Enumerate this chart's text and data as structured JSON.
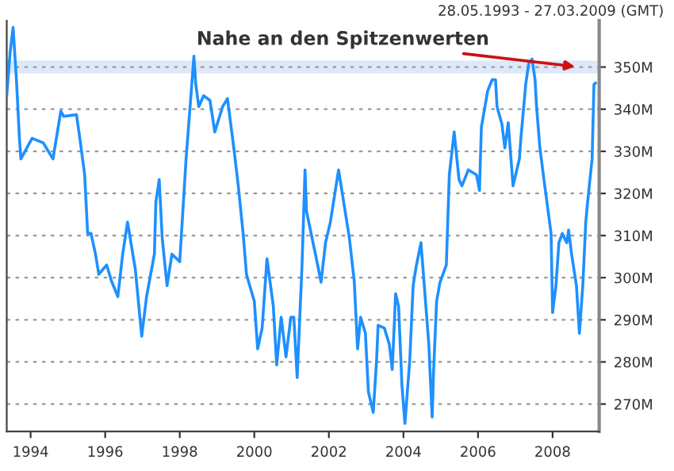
{
  "chart_data": {
    "type": "line",
    "subtitle": "28.05.1993 - 27.03.2009 (GMT)",
    "x": [
      1993.36,
      1993.45,
      1993.53,
      1993.62,
      1993.7,
      1993.74,
      1994.04,
      1994.34,
      1994.6,
      1994.81,
      1994.89,
      1995.23,
      1995.32,
      1995.45,
      1995.53,
      1995.62,
      1995.74,
      1995.83,
      1996.04,
      1996.17,
      1996.34,
      1996.47,
      1996.6,
      1996.81,
      1996.98,
      1997.11,
      1997.32,
      1997.36,
      1997.45,
      1997.53,
      1997.66,
      1997.79,
      1998.0,
      1998.17,
      1998.3,
      1998.38,
      1998.43,
      1998.51,
      1998.64,
      1998.81,
      1998.94,
      1999.15,
      1999.28,
      1999.45,
      1999.57,
      1999.7,
      1999.79,
      2000.0,
      2000.09,
      2000.21,
      2000.34,
      2000.51,
      2000.6,
      2000.72,
      2000.85,
      2000.98,
      2001.06,
      2001.15,
      2001.28,
      2001.36,
      2001.4,
      2001.7,
      2001.79,
      2001.91,
      2002.04,
      2002.26,
      2002.55,
      2002.68,
      2002.77,
      2002.85,
      2002.98,
      2003.06,
      2003.19,
      2003.28,
      2003.32,
      2003.49,
      2003.62,
      2003.7,
      2003.79,
      2003.87,
      2003.96,
      2004.04,
      2004.17,
      2004.26,
      2004.34,
      2004.47,
      2004.55,
      2004.68,
      2004.77,
      2004.81,
      2004.89,
      2004.98,
      2005.15,
      2005.23,
      2005.36,
      2005.49,
      2005.57,
      2005.74,
      2005.96,
      2006.04,
      2006.09,
      2006.26,
      2006.38,
      2006.47,
      2006.51,
      2006.64,
      2006.72,
      2006.81,
      2006.94,
      2007.11,
      2007.15,
      2007.28,
      2007.36,
      2007.45,
      2007.53,
      2007.57,
      2007.66,
      2007.79,
      2007.96,
      2008.0,
      2008.09,
      2008.17,
      2008.26,
      2008.38,
      2008.43,
      2008.51,
      2008.64,
      2008.72,
      2008.81,
      2008.89,
      2008.94,
      2009.06,
      2009.11,
      2009.15
    ],
    "series": [
      {
        "color": "#1e90ff",
        "values": [
          343.2,
          353.4,
          359.4,
          347.0,
          333.1,
          328.2,
          333.1,
          332.0,
          328.2,
          339.5,
          338.3,
          338.7,
          333.1,
          324.4,
          310.5,
          310.5,
          305.6,
          300.8,
          303.0,
          299.2,
          295.5,
          305.6,
          313.2,
          301.9,
          286.1,
          295.5,
          305.6,
          318.0,
          323.3,
          309.4,
          298.1,
          305.6,
          303.8,
          328.2,
          343.2,
          352.6,
          345.9,
          340.6,
          343.2,
          342.1,
          334.6,
          340.6,
          342.5,
          330.8,
          321.8,
          310.5,
          300.8,
          294.4,
          283.1,
          288.0,
          304.5,
          293.2,
          279.3,
          290.6,
          281.2,
          290.6,
          290.6,
          276.3,
          303.0,
          325.6,
          315.8,
          303.0,
          298.9,
          308.3,
          313.2,
          325.6,
          309.4,
          299.2,
          283.1,
          290.6,
          286.8,
          272.9,
          268.0,
          280.5,
          288.7,
          288.0,
          284.2,
          278.2,
          296.2,
          293.2,
          274.4,
          265.4,
          280.5,
          298.1,
          302.6,
          308.3,
          299.2,
          284.2,
          266.9,
          278.2,
          294.4,
          298.9,
          303.0,
          324.4,
          334.6,
          323.3,
          321.8,
          325.6,
          324.4,
          320.7,
          335.7,
          344.4,
          347.0,
          347.0,
          340.6,
          336.5,
          330.8,
          336.8,
          321.8,
          328.2,
          333.1,
          345.9,
          350.8,
          351.9,
          347.0,
          340.6,
          330.8,
          321.8,
          310.5,
          291.7,
          298.1,
          308.3,
          310.5,
          308.3,
          311.3,
          305.6,
          298.1,
          286.8,
          298.1,
          313.2,
          318.0,
          328.2,
          345.9,
          346.2
        ]
      }
    ],
    "xlim": [
      1993.36,
      2009.25
    ],
    "xticks": [
      1994,
      1996,
      1998,
      2000,
      2002,
      2004,
      2006,
      2008
    ],
    "ylim": [
      263.5,
      361
    ],
    "yticks": [
      {
        "value": 270,
        "label": "270M"
      },
      {
        "value": 280,
        "label": "280M"
      },
      {
        "value": 290,
        "label": "290M"
      },
      {
        "value": 300,
        "label": "300M"
      },
      {
        "value": 310,
        "label": "310M"
      },
      {
        "value": 320,
        "label": "320M"
      },
      {
        "value": 330,
        "label": "330M"
      },
      {
        "value": 340,
        "label": "340M"
      },
      {
        "value": 350,
        "label": "350M"
      }
    ],
    "grid": "y",
    "line_style": "solid",
    "bands": [
      {
        "axis": "y",
        "from": 348.5,
        "to": 351.5,
        "color": "#dde8f8"
      }
    ],
    "annotations": [
      {
        "text": "Nahe an den Spitzenwerten",
        "x": 2008.72,
        "y": 350
      }
    ]
  }
}
